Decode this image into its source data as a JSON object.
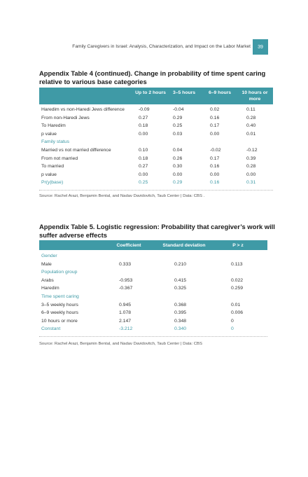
{
  "header": {
    "running_title": "Family Caregivers in Israel: Analysis, Characterization, and Impact on the Labor Market",
    "page_number": "39"
  },
  "table4": {
    "title": "Appendix Table 4 (continued). Change in probability of time spent caring relative to various base categories",
    "columns": [
      "Up to 2 hours",
      "3–5 hours",
      "6–9 hours",
      "10 hours or more"
    ],
    "rows": [
      {
        "label": "Haredim vs non-Haredi Jews difference",
        "values": [
          "-0.09",
          "-0.04",
          "0.02",
          "0.11"
        ]
      },
      {
        "label": "From non-Haredi Jews",
        "values": [
          "0.27",
          "0.29",
          "0.16",
          "0.28"
        ]
      },
      {
        "label": "To Haredim",
        "values": [
          "0.18",
          "0.25",
          "0.17",
          "0.40"
        ]
      },
      {
        "label": "p value",
        "values": [
          "0.00",
          "0.03",
          "0.00",
          "0.01"
        ]
      },
      {
        "label": "Family status",
        "values": [
          "",
          "",
          "",
          ""
        ],
        "section": true
      },
      {
        "label": "Married vs not married difference",
        "values": [
          "0.10",
          "0.04",
          "-0.02",
          "-0.12"
        ]
      },
      {
        "label": "From not married",
        "values": [
          "0.18",
          "0.26",
          "0.17",
          "0.39"
        ]
      },
      {
        "label": "To married",
        "values": [
          "0.27",
          "0.30",
          "0.16",
          "0.28"
        ]
      },
      {
        "label": "p value",
        "values": [
          "0.00",
          "0.00",
          "0.00",
          "0.00"
        ]
      },
      {
        "label": "Pr(y|base)",
        "values": [
          "0.25",
          "0.29",
          "0.16",
          "0.31"
        ],
        "section": true
      }
    ],
    "source": "Source: Rachel Arazi, Benjamin Bental, and Nadav Davidovitch, Taub Center | Data: CBS ."
  },
  "table5": {
    "title": "Appendix Table 5. Logistic regression: Probability that caregiver’s work will suffer adverse effects",
    "columns": [
      "Coefficient",
      "Standard deviation",
      "P > z"
    ],
    "rows": [
      {
        "label": "Gender",
        "values": [
          "",
          "",
          ""
        ],
        "section": true
      },
      {
        "label": "Male",
        "values": [
          "0.333",
          "0.210",
          "0.113"
        ]
      },
      {
        "label": "Population group",
        "values": [
          "",
          "",
          ""
        ],
        "section": true
      },
      {
        "label": "Arabs",
        "values": [
          "-0.953",
          "0.415",
          "0.022"
        ]
      },
      {
        "label": "Haredim",
        "values": [
          "-0.367",
          "0.325",
          "0.259"
        ]
      },
      {
        "label": "Time spent caring",
        "values": [
          "",
          "",
          ""
        ],
        "section": true
      },
      {
        "label": "3–5 weekly hours",
        "values": [
          "0.945",
          "0.368",
          "0.01"
        ]
      },
      {
        "label": "6–9 weekly hours",
        "values": [
          "1.078",
          "0.395",
          "0.006"
        ]
      },
      {
        "label": "10 hours or more",
        "values": [
          "2.147",
          "0.348",
          "0"
        ]
      },
      {
        "label": "Constant",
        "values": [
          "-3.212",
          "0.340",
          "0"
        ],
        "section": true
      }
    ],
    "source": "Source: Rachel Arazi, Benjamin Bental, and Nadav Davidovitch, Taub Center | Data: CBS"
  },
  "colors": {
    "accent": "#3f9aa6"
  }
}
